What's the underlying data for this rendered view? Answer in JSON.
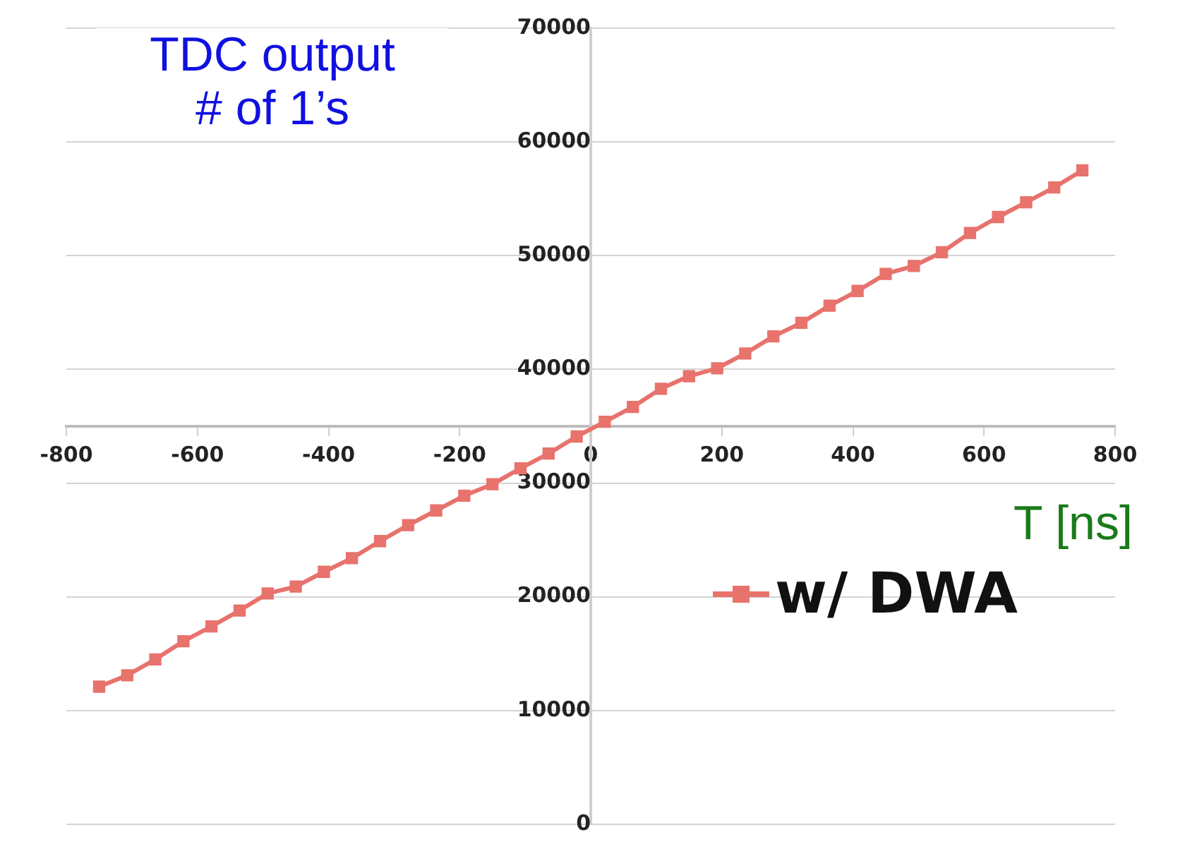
{
  "chart_data": {
    "type": "line",
    "xlabel": "T [ns]",
    "ylabel": "TDC output\n# of 1’s",
    "x": [
      -750,
      -707.1,
      -664.3,
      -621.4,
      -578.6,
      -535.7,
      -492.9,
      -450,
      -407.1,
      -364.3,
      -321.4,
      -278.6,
      -235.7,
      -192.9,
      -150,
      -107.1,
      -64.3,
      -21.4,
      21.4,
      64.3,
      107.1,
      150,
      192.9,
      235.7,
      278.6,
      321.4,
      364.3,
      407.1,
      450,
      492.9,
      535.7,
      578.6,
      621.4,
      664.3,
      707.1,
      750
    ],
    "series": [
      {
        "name": "w/ DWA",
        "color": "#e8726c",
        "values": [
          12100,
          13100,
          14500,
          16100,
          17400,
          18800,
          20300,
          20900,
          22200,
          23400,
          24900,
          26300,
          27600,
          28900,
          29900,
          31300,
          32600,
          34100,
          35400,
          36700,
          38300,
          39400,
          40100,
          41400,
          42900,
          44100,
          45600,
          46900,
          48400,
          49100,
          50300,
          52000,
          53400,
          54700,
          56000,
          57500
        ]
      }
    ],
    "xlim": [
      -800,
      800
    ],
    "xticks": [
      -800,
      -600,
      -400,
      -200,
      0,
      200,
      400,
      600,
      800
    ],
    "ylim": [
      0,
      70000
    ],
    "yticks": [
      0,
      10000,
      20000,
      30000,
      40000,
      50000,
      60000,
      70000
    ],
    "grid": "y",
    "legend": "right",
    "marker": "square",
    "line_style": "solid"
  }
}
